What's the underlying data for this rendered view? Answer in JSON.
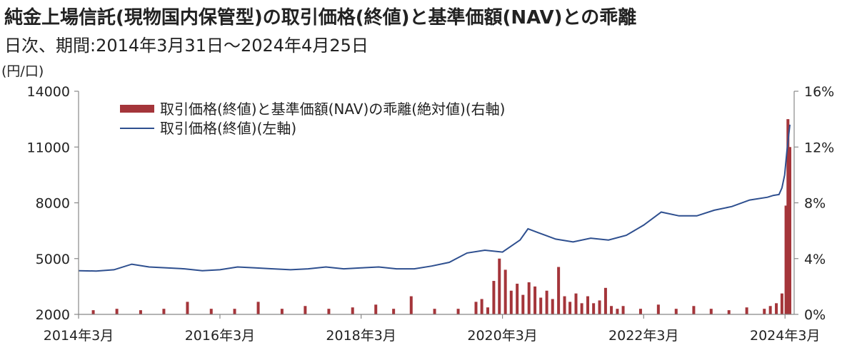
{
  "chart_data": {
    "type": "bar+line",
    "title": "純金上場信託(現物国内保管型)の取引価格(終値)と基準価額(NAV)との乖離",
    "subtitle": "日次、期間:2014年3月31日〜2024年4月25日",
    "y_left_unit": "(円/口)",
    "y_left_ticks": [
      "14000",
      "11000",
      "8000",
      "5000",
      "2000"
    ],
    "y_left_range": [
      2000,
      14000
    ],
    "y_right_ticks": [
      "16%",
      "12%",
      "8%",
      "4%",
      "0%"
    ],
    "y_right_range": [
      0,
      16
    ],
    "x_ticks": [
      "2014年3月",
      "2016年3月",
      "2018年3月",
      "2020年3月",
      "2022年3月",
      "2024年3月"
    ],
    "x_range": [
      "2014-03-31",
      "2024-04-25"
    ],
    "legend": [
      "取引価格(終値)と基準価額(NAV)の乖離(絶対値)(右軸)",
      "取引価格(終値)(左軸)"
    ],
    "colors": {
      "price_line": "#2e4f8f",
      "deviation_bar": "#a4353a",
      "axis": "#888888"
    },
    "price_series": {
      "name": "取引価格(終値)(左軸)",
      "x": [
        "2014-03-31",
        "2014-06-30",
        "2014-09-30",
        "2014-12-31",
        "2015-03-31",
        "2015-06-30",
        "2015-09-30",
        "2015-12-31",
        "2016-03-31",
        "2016-06-30",
        "2016-09-30",
        "2016-12-31",
        "2017-03-31",
        "2017-06-30",
        "2017-09-30",
        "2017-12-31",
        "2018-03-31",
        "2018-06-30",
        "2018-09-30",
        "2018-12-31",
        "2019-03-31",
        "2019-06-30",
        "2019-09-30",
        "2019-12-31",
        "2020-03-31",
        "2020-06-30",
        "2020-08-10",
        "2020-09-30",
        "2020-12-31",
        "2021-03-31",
        "2021-06-30",
        "2021-09-30",
        "2021-12-31",
        "2022-03-31",
        "2022-06-30",
        "2022-09-30",
        "2022-12-31",
        "2023-03-31",
        "2023-06-30",
        "2023-09-30",
        "2023-12-31",
        "2024-01-31",
        "2024-02-29",
        "2024-03-15",
        "2024-03-29",
        "2024-04-10",
        "2024-04-25"
      ],
      "values": [
        4350,
        4330,
        4400,
        4700,
        4550,
        4500,
        4450,
        4350,
        4400,
        4550,
        4500,
        4450,
        4400,
        4450,
        4550,
        4450,
        4500,
        4550,
        4450,
        4450,
        4600,
        4800,
        5300,
        5450,
        5350,
        6000,
        6600,
        6400,
        6050,
        5900,
        6100,
        6000,
        6250,
        6800,
        7500,
        7300,
        7300,
        7600,
        7800,
        8150,
        8300,
        8400,
        8450,
        8800,
        9500,
        10800,
        12200
      ]
    },
    "deviation_series": {
      "name": "取引価格(終値)と基準価額(NAV)の乖離(絶対値)(右軸)",
      "x": [
        "2014-06",
        "2014-10",
        "2015-02",
        "2015-06",
        "2015-10",
        "2016-02",
        "2016-06",
        "2016-10",
        "2017-02",
        "2017-06",
        "2017-10",
        "2018-02",
        "2018-06",
        "2018-09",
        "2018-12",
        "2019-04",
        "2019-08",
        "2019-11",
        "2019-12",
        "2020-01",
        "2020-02",
        "2020-03",
        "2020-04",
        "2020-05",
        "2020-06",
        "2020-07",
        "2020-08",
        "2020-09",
        "2020-10",
        "2020-11",
        "2020-12",
        "2021-01",
        "2021-02",
        "2021-03",
        "2021-04",
        "2021-05",
        "2021-06",
        "2021-07",
        "2021-08",
        "2021-09",
        "2021-10",
        "2021-11",
        "2021-12",
        "2022-03",
        "2022-06",
        "2022-09",
        "2022-12",
        "2023-03",
        "2023-06",
        "2023-09",
        "2023-12",
        "2024-01",
        "2024-02",
        "2024-03",
        "2024-04-05",
        "2024-04-15",
        "2024-04-25"
      ],
      "values": [
        0.3,
        0.4,
        0.3,
        0.4,
        0.9,
        0.4,
        0.4,
        0.9,
        0.4,
        0.6,
        0.4,
        0.5,
        0.7,
        0.4,
        1.3,
        0.4,
        0.4,
        0.9,
        1.1,
        0.5,
        2.4,
        4.0,
        3.2,
        1.7,
        2.2,
        1.4,
        2.3,
        2.0,
        1.2,
        1.7,
        1.1,
        3.4,
        1.3,
        0.9,
        1.5,
        0.8,
        1.3,
        0.8,
        1.0,
        1.9,
        0.6,
        0.4,
        0.6,
        0.4,
        0.7,
        0.4,
        0.6,
        0.4,
        0.3,
        0.5,
        0.4,
        0.6,
        0.8,
        1.5,
        7.8,
        14.0,
        12.0
      ]
    }
  }
}
